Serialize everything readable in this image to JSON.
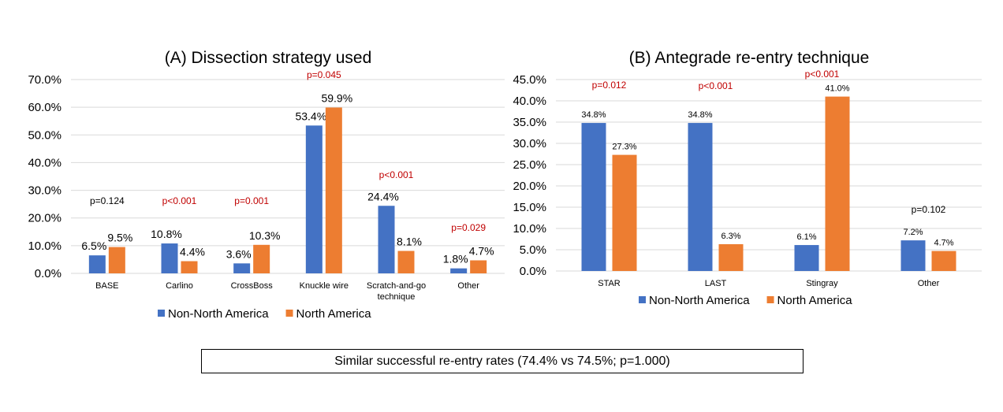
{
  "colors": {
    "non_na": "#4472C4",
    "na": "#ED7D31",
    "sig": "#C00000",
    "grid": "#D9D9D9",
    "text": "#000000"
  },
  "chart_data": [
    {
      "type": "bar",
      "title": "(A) Dissection strategy used",
      "categories": [
        "BASE",
        "Carlino",
        "CrossBoss",
        "Knuckle wire",
        "Scratch-and-go technique",
        "Other"
      ],
      "series": [
        {
          "name": "Non-North America",
          "values": [
            6.5,
            10.8,
            3.6,
            53.4,
            24.4,
            1.8
          ],
          "labels": [
            "6.5%",
            "10.8%",
            "3.6%",
            "53.4%",
            "24.4%",
            "1.8%"
          ]
        },
        {
          "name": "North America",
          "values": [
            9.5,
            4.4,
            10.3,
            59.9,
            8.1,
            4.7
          ],
          "labels": [
            "9.5%",
            "4.4%",
            "10.3%",
            "59.9%",
            "8.1%",
            "4.7%"
          ]
        }
      ],
      "p_values": [
        {
          "text": "p=0.124",
          "significant": false
        },
        {
          "text": "p<0.001",
          "significant": true
        },
        {
          "text": "p=0.001",
          "significant": true
        },
        {
          "text": "p=0.045",
          "significant": true
        },
        {
          "text": "p<0.001",
          "significant": true
        },
        {
          "text": "p=0.029",
          "significant": true
        }
      ],
      "ylim": [
        0,
        70
      ],
      "yticks": [
        "0.0%",
        "10.0%",
        "20.0%",
        "30.0%",
        "40.0%",
        "50.0%",
        "60.0%",
        "70.0%"
      ],
      "grid": true,
      "legend": "bottom"
    },
    {
      "type": "bar",
      "title": "(B) Antegrade re-entry technique",
      "categories": [
        "STAR",
        "LAST",
        "Stingray",
        "Other"
      ],
      "series": [
        {
          "name": "Non-North America",
          "values": [
            34.8,
            34.8,
            6.1,
            7.2
          ],
          "labels": [
            "34.8%",
            "34.8%",
            "6.1%",
            "7.2%"
          ]
        },
        {
          "name": "North America",
          "values": [
            27.3,
            6.3,
            41.0,
            4.7
          ],
          "labels": [
            "27.3%",
            "6.3%",
            "41.0%",
            "4.7%"
          ]
        }
      ],
      "p_values": [
        {
          "text": "p=0.012",
          "significant": true
        },
        {
          "text": "p<0.001",
          "significant": true
        },
        {
          "text": "p<0.001",
          "significant": true
        },
        {
          "text": "p=0.102",
          "significant": false
        }
      ],
      "ylim": [
        0,
        45
      ],
      "yticks": [
        "0.0%",
        "5.0%",
        "10.0%",
        "15.0%",
        "20.0%",
        "25.0%",
        "30.0%",
        "35.0%",
        "40.0%",
        "45.0%"
      ],
      "grid": true,
      "legend": "bottom"
    }
  ],
  "summary": "Similar successful re-entry rates (74.4% vs 74.5%; p=1.000)"
}
